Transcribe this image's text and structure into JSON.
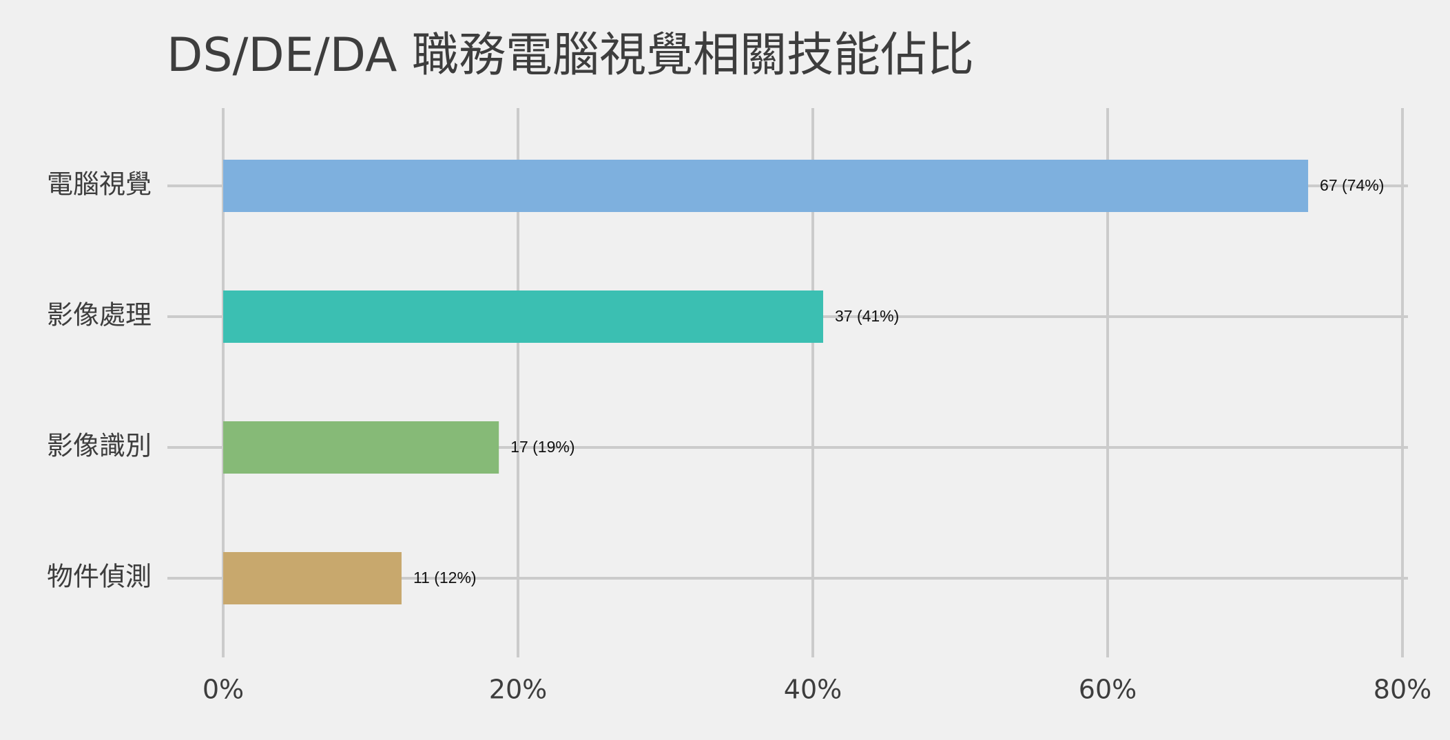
{
  "chart_data": {
    "type": "bar",
    "orientation": "horizontal",
    "title": "DS/DE/DA 職務電腦視覺相關技能佔比",
    "xlabel": "",
    "ylabel": "",
    "categories": [
      "電腦視覺",
      "影像處理",
      "影像識別",
      "物件偵測"
    ],
    "values": [
      73.6,
      40.7,
      18.7,
      12.1
    ],
    "counts": [
      67,
      37,
      17,
      11
    ],
    "data_labels": [
      "67 (74%)",
      "37 (41%)",
      "17 (19%)",
      "11 (12%)"
    ],
    "colors": [
      "#7eb0de",
      "#3bbfb2",
      "#86ba77",
      "#c8a86d"
    ],
    "xlim": [
      0,
      80
    ],
    "xticks": [
      0,
      20,
      40,
      60,
      80
    ],
    "xtick_labels": [
      "0%",
      "20%",
      "40%",
      "60%",
      "80%"
    ],
    "grid": true,
    "legend": "none"
  }
}
